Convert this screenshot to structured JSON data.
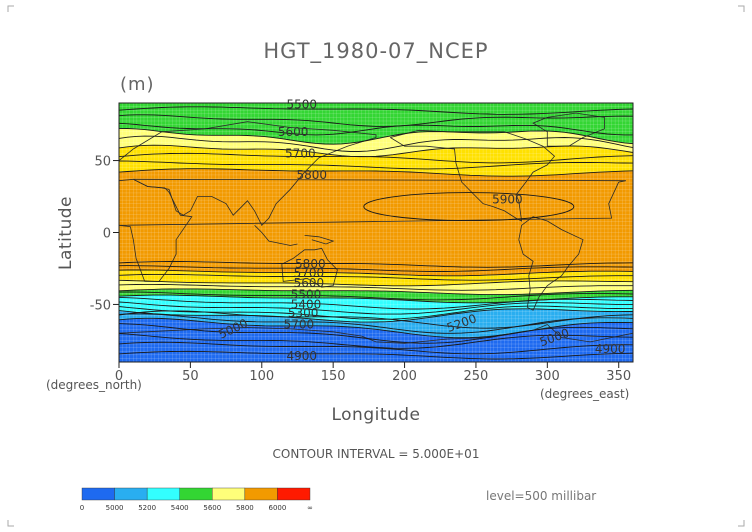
{
  "chart_data": {
    "type": "contour",
    "title": "HGT_1980-07_NCEP",
    "units": "(m)",
    "xlabel": "Longitude",
    "ylabel": "Latitude",
    "x_tick_labels": [
      "0",
      "50",
      "100",
      "150",
      "200",
      "250",
      "300",
      "350"
    ],
    "y_tick_labels": [
      "50",
      "0",
      "-50"
    ],
    "x_ticks": [
      0,
      50,
      100,
      150,
      200,
      250,
      300,
      350
    ],
    "y_ticks": [
      50,
      0,
      -50
    ],
    "xlim": [
      0,
      360
    ],
    "ylim": [
      -90,
      90
    ],
    "x_units_label": "(degrees_east)",
    "y_units_label": "(degrees_north)",
    "contour_interval_text": "CONTOUR INTERVAL = 5.000E+01",
    "level_text": "level=500 millibar",
    "contour_labels": [
      {
        "text": "5500",
        "lon": 128,
        "lat": 89
      },
      {
        "text": "5600",
        "lon": 122,
        "lat": 70
      },
      {
        "text": "5700",
        "lon": 127,
        "lat": 55
      },
      {
        "text": "5800",
        "lon": 135,
        "lat": 40
      },
      {
        "text": "5900",
        "lon": 272,
        "lat": 23
      },
      {
        "text": "5800",
        "lon": 134,
        "lat": -22
      },
      {
        "text": "5700",
        "lon": 133,
        "lat": -28
      },
      {
        "text": "5600",
        "lon": 133,
        "lat": -35
      },
      {
        "text": "5500",
        "lon": 131,
        "lat": -43
      },
      {
        "text": "5400",
        "lon": 131,
        "lat": -50
      },
      {
        "text": "5300",
        "lon": 129,
        "lat": -56
      },
      {
        "text": "5700",
        "lon": 126,
        "lat": -64
      },
      {
        "text": "5000",
        "lon": 80,
        "lat": -67
      },
      {
        "text": "5200",
        "lon": 240,
        "lat": -63
      },
      {
        "text": "5000",
        "lon": 305,
        "lat": -73
      },
      {
        "text": "4900",
        "lon": 128,
        "lat": -86
      },
      {
        "text": "4900",
        "lon": 344,
        "lat": -81
      }
    ],
    "bands": [
      {
        "level": "> 6000",
        "color": "#ff1a00",
        "lat_top": null,
        "lat_bottom": null
      },
      {
        "level": "5800-6000",
        "color": "#f29a00",
        "lat_top": 42,
        "lat_bottom": -28
      },
      {
        "level": "5700-5800",
        "color": "#ffe100",
        "lat_top": 57,
        "lat_bottom": -35
      },
      {
        "level": "5600-5700",
        "color": "#ffff7a",
        "lat_top": 67,
        "lat_bottom": -41
      },
      {
        "level": "5400-5600",
        "color": "#33d633",
        "lat_top": 90,
        "lat_bottom": -46
      },
      {
        "level": "5200-5400",
        "color": "#33ffff",
        "lat_top": null,
        "lat_bottom": -58
      },
      {
        "level": "5000-5200",
        "color": "#29aef0",
        "lat_top": null,
        "lat_bottom": -66
      },
      {
        "level": "< 5000",
        "color": "#1e6af0",
        "lat_top": null,
        "lat_bottom": -90
      }
    ],
    "colorbar": {
      "labels": [
        "0",
        "5000",
        "5200",
        "5400",
        "5600",
        "5800",
        "6000",
        "∞"
      ],
      "colors": [
        "#1e6af0",
        "#29aef0",
        "#33ffff",
        "#33d633",
        "#ffff7a",
        "#f29a00",
        "#ff1a00"
      ]
    }
  }
}
